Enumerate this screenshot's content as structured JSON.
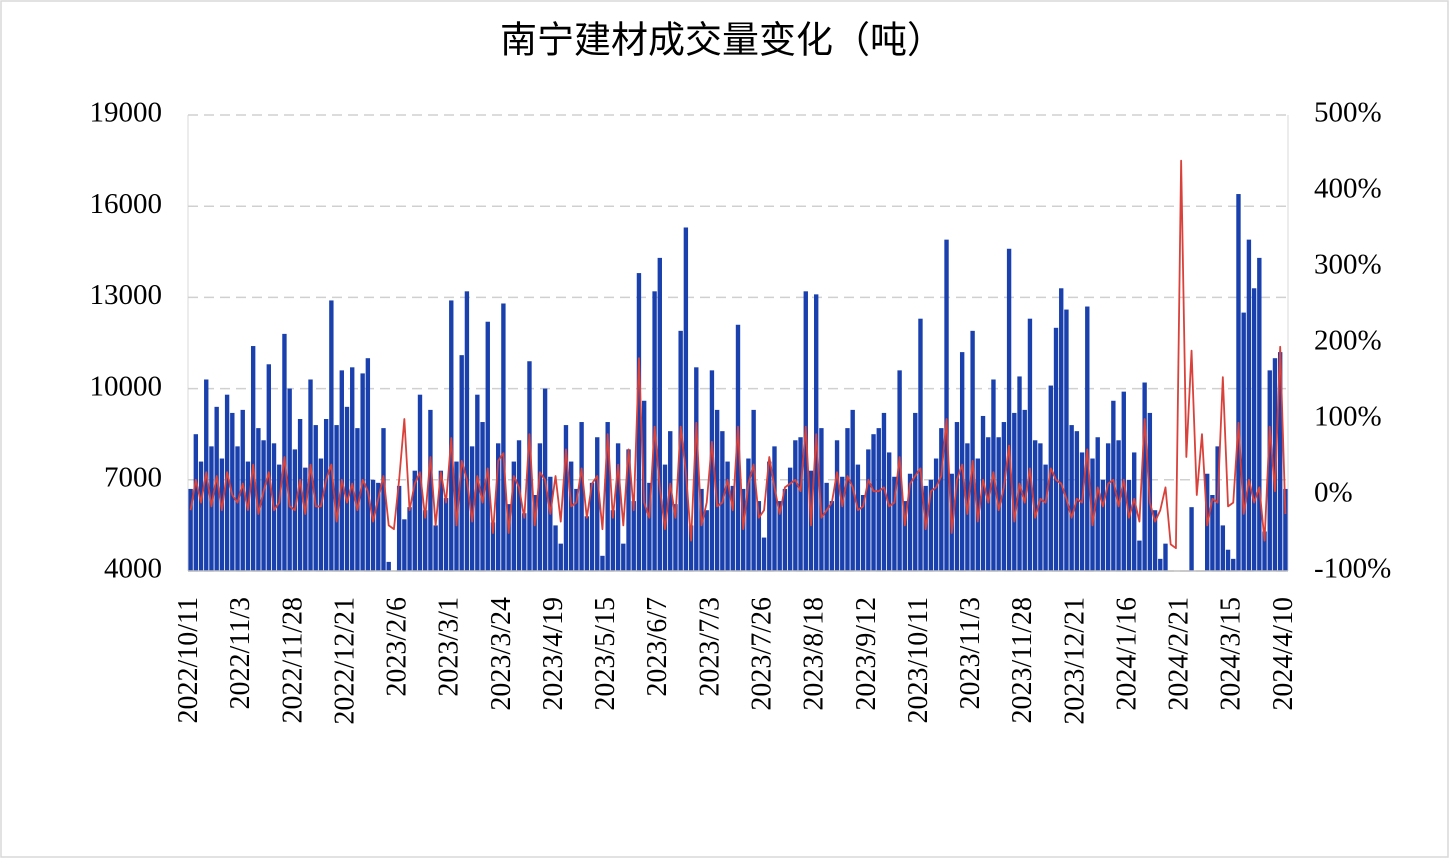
{
  "chart_data": {
    "type": "bar-line",
    "title": "南宁建材成交量变化（吨）",
    "categories": [
      "2022/10/11",
      null,
      null,
      null,
      null,
      null,
      null,
      null,
      null,
      null,
      "2022/11/3",
      null,
      null,
      null,
      null,
      null,
      null,
      null,
      null,
      null,
      "2022/11/28",
      null,
      null,
      null,
      null,
      null,
      null,
      null,
      null,
      null,
      "2022/12/21",
      null,
      null,
      null,
      null,
      null,
      null,
      null,
      null,
      null,
      "2023/2/6",
      null,
      null,
      null,
      null,
      null,
      null,
      null,
      null,
      null,
      "2023/3/1",
      null,
      null,
      null,
      null,
      null,
      null,
      null,
      null,
      null,
      "2023/3/24",
      null,
      null,
      null,
      null,
      null,
      null,
      null,
      null,
      null,
      "2023/4/19",
      null,
      null,
      null,
      null,
      null,
      null,
      null,
      null,
      null,
      "2023/5/15",
      null,
      null,
      null,
      null,
      null,
      null,
      null,
      null,
      null,
      "2023/6/7",
      null,
      null,
      null,
      null,
      null,
      null,
      null,
      null,
      null,
      "2023/7/3",
      null,
      null,
      null,
      null,
      null,
      null,
      null,
      null,
      null,
      "2023/7/26",
      null,
      null,
      null,
      null,
      null,
      null,
      null,
      null,
      null,
      "2023/8/18",
      null,
      null,
      null,
      null,
      null,
      null,
      null,
      null,
      null,
      "2023/9/12",
      null,
      null,
      null,
      null,
      null,
      null,
      null,
      null,
      null,
      "2023/10/11",
      null,
      null,
      null,
      null,
      null,
      null,
      null,
      null,
      null,
      "2023/11/3",
      null,
      null,
      null,
      null,
      null,
      null,
      null,
      null,
      null,
      "2023/11/28",
      null,
      null,
      null,
      null,
      null,
      null,
      null,
      null,
      null,
      "2023/12/21",
      null,
      null,
      null,
      null,
      null,
      null,
      null,
      null,
      null,
      "2024/1/16",
      null,
      null,
      null,
      null,
      null,
      null,
      null,
      null,
      null,
      "2024/2/21",
      null,
      null,
      null,
      null,
      null,
      null,
      null,
      null,
      null,
      "2024/3/15",
      null,
      null,
      null,
      null,
      null,
      null,
      null,
      null,
      null,
      "2024/4/10"
    ],
    "series": [
      {
        "color": "#1a40ae",
        "values": [
          6700,
          8500,
          7600,
          10300,
          8100,
          9400,
          7700,
          9800,
          9200,
          8100,
          9300,
          7600,
          11400,
          8700,
          8300,
          10800,
          8200,
          7500,
          11800,
          10000,
          8000,
          9000,
          7400,
          10300,
          8800,
          7700,
          9000,
          12900,
          8800,
          10600,
          9400,
          10700,
          8700,
          10500,
          11000,
          7000,
          6900,
          8700,
          4300,
          null,
          6800,
          5700,
          6100,
          7300,
          9800,
          6000,
          9300,
          5500,
          7300,
          6400,
          12900,
          7600,
          11100,
          13200,
          8100,
          9800,
          8900,
          12200,
          5600,
          8200,
          12800,
          6200,
          7600,
          8300,
          5900,
          10900,
          6500,
          8200,
          10000,
          7100,
          5500,
          4900,
          8800,
          7600,
          6700,
          8900,
          5800,
          6900,
          8400,
          4500,
          8900,
          6000,
          8200,
          4900,
          8000,
          6300,
          13800,
          9600,
          6900,
          13200,
          14300,
          7500,
          8600,
          6200,
          11900,
          15300,
          5500,
          10700,
          6700,
          6000,
          10600,
          9300,
          8600,
          7600,
          6800,
          12100,
          6700,
          7700,
          9300,
          6300,
          5100,
          7600,
          8100,
          6300,
          6700,
          7400,
          8300,
          8400,
          13200,
          7300,
          13100,
          8700,
          6900,
          6300,
          8300,
          7100,
          8700,
          9300,
          7500,
          6500,
          8000,
          8500,
          8700,
          9200,
          7900,
          7100,
          10600,
          6300,
          7200,
          9200,
          12300,
          6800,
          7000,
          7700,
          8700,
          14900,
          7200,
          8900,
          11200,
          8200,
          11900,
          7700,
          9100,
          8400,
          10300,
          8400,
          8900,
          14600,
          9200,
          10400,
          9300,
          12300,
          8300,
          8200,
          7500,
          10100,
          12000,
          13300,
          12600,
          8800,
          8600,
          7900,
          12700,
          7700,
          8400,
          7000,
          8200,
          9600,
          8300,
          9900,
          7000,
          7900,
          5000,
          10200,
          9200,
          6000,
          4400,
          4900,
          null,
          null,
          null,
          null,
          6100,
          null,
          null,
          7200,
          6500,
          8100,
          5500,
          4700,
          4400,
          16400,
          12500,
          14900,
          13300,
          14300,
          5300,
          10600,
          11000,
          11200,
          6700
        ]
      },
      {
        "color": "#d9413a",
        "axis": "y2",
        "values": [
          -20,
          20,
          -10,
          30,
          -15,
          25,
          -20,
          30,
          0,
          -10,
          15,
          -20,
          40,
          -25,
          5,
          30,
          -20,
          -10,
          50,
          -15,
          -20,
          20,
          -25,
          40,
          -15,
          -15,
          20,
          40,
          -35,
          20,
          -10,
          15,
          -20,
          20,
          5,
          -35,
          -5,
          25,
          -40,
          -45,
          20,
          100,
          -20,
          15,
          30,
          -30,
          50,
          -40,
          30,
          -10,
          75,
          -40,
          45,
          20,
          -35,
          25,
          -10,
          35,
          -50,
          45,
          55,
          -50,
          25,
          10,
          -30,
          80,
          -40,
          30,
          20,
          -25,
          25,
          -35,
          60,
          -15,
          -10,
          35,
          -30,
          15,
          25,
          -45,
          80,
          -30,
          40,
          -40,
          60,
          -20,
          180,
          -10,
          -30,
          90,
          10,
          -45,
          15,
          -30,
          90,
          30,
          -60,
          95,
          -40,
          -10,
          70,
          -15,
          -10,
          20,
          -20,
          90,
          -45,
          15,
          40,
          -30,
          -20,
          50,
          10,
          -25,
          10,
          15,
          20,
          5,
          90,
          -40,
          80,
          -30,
          -20,
          -10,
          30,
          -15,
          25,
          10,
          -20,
          -15,
          20,
          5,
          5,
          10,
          -15,
          -10,
          50,
          -40,
          15,
          25,
          35,
          -45,
          5,
          10,
          25,
          100,
          -50,
          20,
          40,
          -25,
          45,
          -35,
          20,
          -10,
          30,
          -20,
          10,
          65,
          -35,
          15,
          -10,
          35,
          -30,
          -5,
          -10,
          35,
          20,
          15,
          -5,
          -30,
          -5,
          -10,
          60,
          -40,
          10,
          -15,
          15,
          20,
          -15,
          20,
          -30,
          -5,
          -35,
          100,
          -10,
          -35,
          -20,
          10,
          -65,
          -70,
          440,
          50,
          190,
          0,
          80,
          -40,
          -5,
          -10,
          155,
          -15,
          -10,
          95,
          -25,
          20,
          -10,
          10,
          -60,
          90,
          5,
          195,
          -25
        ]
      }
    ],
    "ylim": [
      4000,
      19000
    ],
    "yticks": [
      4000,
      7000,
      10000,
      13000,
      16000,
      19000
    ],
    "y2lim": [
      -100,
      500
    ],
    "y2ticks": [
      {
        "value": -100,
        "label": "-100%"
      },
      {
        "value": 0,
        "label": "0%"
      },
      {
        "value": 100,
        "label": "100%"
      },
      {
        "value": 200,
        "label": "200%"
      },
      {
        "value": 300,
        "label": "300%"
      },
      {
        "value": 400,
        "label": "400%"
      },
      {
        "value": 500,
        "label": "500%"
      }
    ],
    "grid": true
  }
}
